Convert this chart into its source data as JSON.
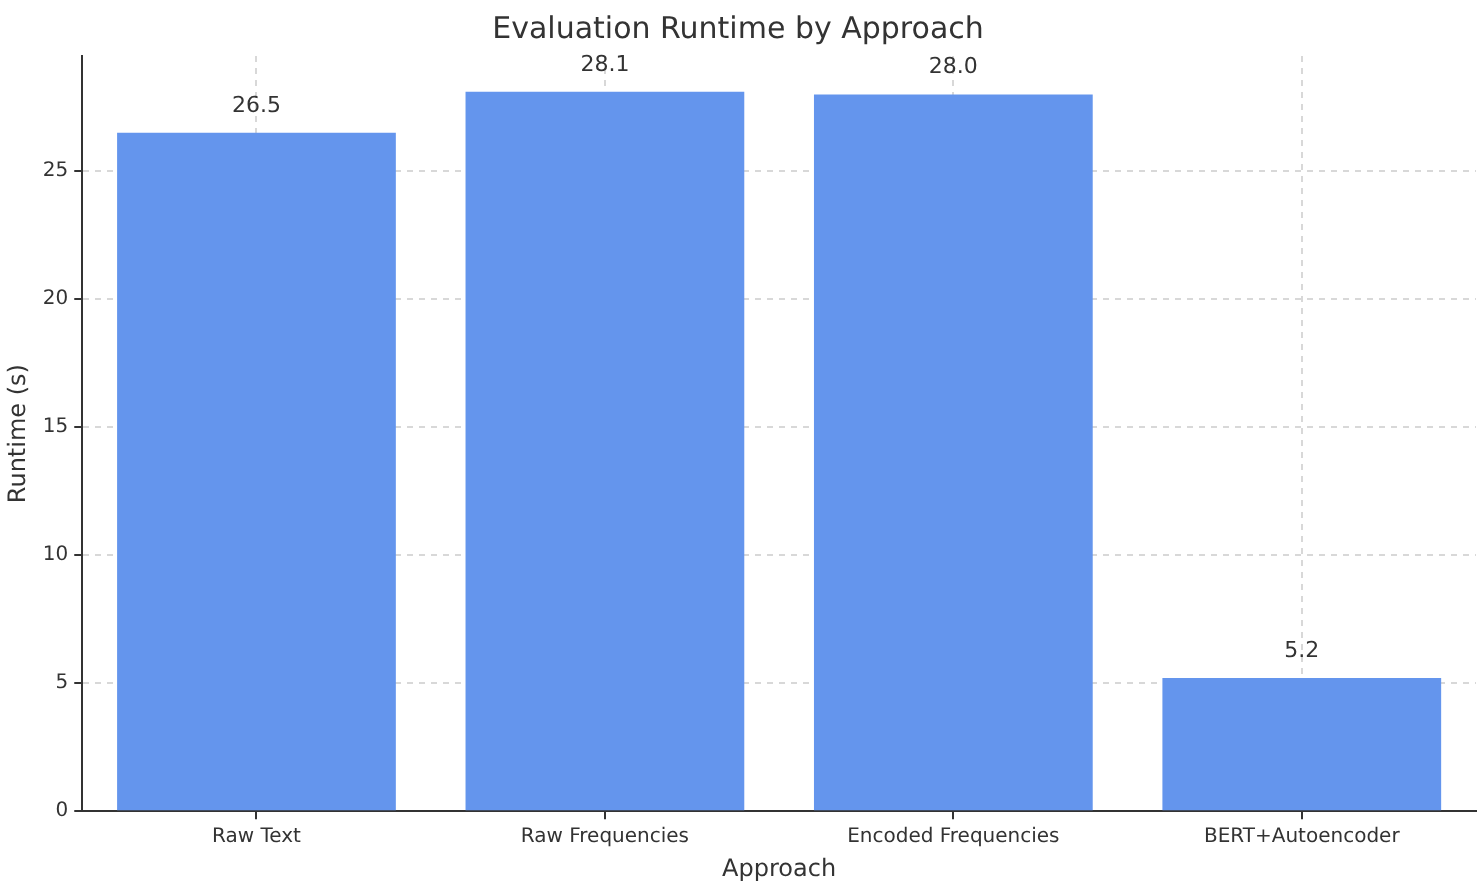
{
  "chart_data": {
    "type": "bar",
    "title": "Evaluation Runtime by Approach",
    "xlabel": "Approach",
    "ylabel": "Runtime (s)",
    "categories": [
      "Raw Text",
      "Raw Frequencies",
      "Encoded Frequencies",
      "BERT+Autoencoder"
    ],
    "values": [
      26.5,
      28.1,
      28.0,
      5.2
    ],
    "value_labels": [
      "26.5",
      "28.1",
      "28.0",
      "5.2"
    ],
    "color": "#6495ed",
    "ylim": [
      0,
      29.5
    ],
    "yticks": [
      0,
      5,
      10,
      15,
      20,
      25
    ],
    "grid": true,
    "legend": false
  }
}
